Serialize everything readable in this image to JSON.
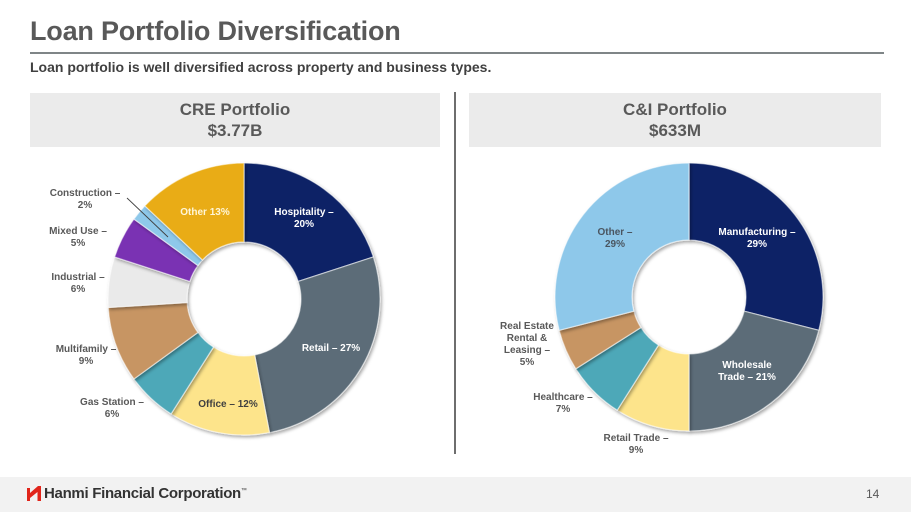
{
  "page": {
    "title": "Loan Portfolio Diversification",
    "subtitle": "Loan portfolio is well diversified across property and business types.",
    "page_number": "14"
  },
  "footer": {
    "company": "Hanmi Financial Corporation",
    "trademark": "™",
    "logo_color": "#e1251b"
  },
  "panels": [
    {
      "heading": "CRE Portfolio",
      "total": "$3.77B"
    },
    {
      "heading": "C&I Portfolio",
      "total": "$633M"
    }
  ],
  "chart_data": [
    {
      "type": "pie",
      "variant": "donut",
      "title": "CRE Portfolio",
      "subtitle": "$3.77B",
      "unit": "%",
      "start": "top",
      "direction": "clockwise",
      "slices": [
        {
          "label": "Hospitality",
          "value": 20,
          "color": "#0c2266",
          "text": [
            "Hospitality –",
            "20%"
          ],
          "text_color": "#ffffff",
          "label_pos": "inside"
        },
        {
          "label": "Retail",
          "value": 27,
          "color": "#5b6c78",
          "text": [
            "Retail –  27%"
          ],
          "text_color": "#ffffff",
          "label_pos": "inside"
        },
        {
          "label": "Office",
          "value": 12,
          "color": "#fde48b",
          "text": [
            "Office – 12%"
          ],
          "text_color": "#404040",
          "label_pos": "inside"
        },
        {
          "label": "Gas Station",
          "value": 6,
          "color": "#4ea8b8",
          "text": [
            "Gas Station –",
            "6%"
          ],
          "text_color": "#595959",
          "label_pos": "outside"
        },
        {
          "label": "Multifamily",
          "value": 9,
          "color": "#c79563",
          "text": [
            "Multifamily –",
            "9%"
          ],
          "text_color": "#595959",
          "label_pos": "outside"
        },
        {
          "label": "Industrial",
          "value": 6,
          "color": "#eaeaea",
          "text": [
            "Industrial –",
            "6%"
          ],
          "text_color": "#595959",
          "label_pos": "outside"
        },
        {
          "label": "Mixed Use",
          "value": 5,
          "color": "#7a33b3",
          "text": [
            "Mixed Use –",
            "5%"
          ],
          "text_color": "#595959",
          "label_pos": "outside"
        },
        {
          "label": "Construction",
          "value": 2,
          "color": "#8ec8ea",
          "text": [
            "Construction –",
            "2%"
          ],
          "text_color": "#595959",
          "label_pos": "outside-leader"
        },
        {
          "label": "Other",
          "value": 13,
          "color": "#e9ac12",
          "text": [
            "Other 13%"
          ],
          "text_color": "#fff6d8",
          "label_pos": "inside"
        }
      ]
    },
    {
      "type": "pie",
      "variant": "donut",
      "title": "C&I Portfolio",
      "subtitle": "$633M",
      "unit": "%",
      "start": "top",
      "direction": "clockwise",
      "slices": [
        {
          "label": "Manufacturing",
          "value": 29,
          "color": "#0c2266",
          "text": [
            "Manufacturing –",
            "29%"
          ],
          "text_color": "#ffffff",
          "label_pos": "inside"
        },
        {
          "label": "Wholesale Trade",
          "value": 21,
          "color": "#5b6c78",
          "text": [
            "Wholesale",
            "Trade – 21%"
          ],
          "text_color": "#ffffff",
          "label_pos": "inside"
        },
        {
          "label": "Retail Trade",
          "value": 9,
          "color": "#fde48b",
          "text": [
            "Retail Trade –",
            "9%"
          ],
          "text_color": "#595959",
          "label_pos": "outside"
        },
        {
          "label": "Healthcare",
          "value": 7,
          "color": "#4ea8b8",
          "text": [
            "Healthcare –",
            "7%"
          ],
          "text_color": "#595959",
          "label_pos": "outside"
        },
        {
          "label": "Real Estate Rental & Leasing",
          "value": 5,
          "color": "#c79563",
          "text": [
            "Real Estate",
            "Rental &",
            "Leasing –",
            "5%"
          ],
          "text_color": "#595959",
          "label_pos": "outside"
        },
        {
          "label": "Other",
          "value": 29,
          "color": "#8ec8ea",
          "text": [
            "Other –",
            "29%"
          ],
          "text_color": "#4a5560",
          "label_pos": "inside"
        }
      ]
    }
  ]
}
